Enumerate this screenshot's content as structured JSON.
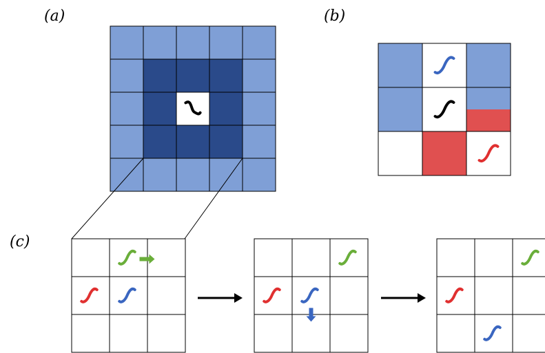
{
  "panel_labels": {
    "a": "(a)",
    "b": "(b)",
    "c": "(c)"
  },
  "colors": {
    "light_blue": "#7f9fd6",
    "dark_blue": "#2a4a8a",
    "red": "#e05050",
    "white": "#ffffff",
    "worm_black": "#000000",
    "worm_blue": "#3a66c0",
    "worm_red": "#e03030",
    "worm_green": "#6aae3a",
    "arrow_black": "#000000"
  },
  "panel_a": {
    "grid_size": 5,
    "cells": [
      [
        "light",
        "light",
        "light",
        "light",
        "light"
      ],
      [
        "light",
        "dark",
        "dark",
        "dark",
        "light"
      ],
      [
        "light",
        "dark",
        "white",
        "dark",
        "light"
      ],
      [
        "light",
        "dark",
        "dark",
        "dark",
        "light"
      ],
      [
        "light",
        "light",
        "light",
        "light",
        "light"
      ]
    ],
    "worm": {
      "row": 2,
      "col": 2,
      "color": "worm_black",
      "icon": "worm-icon"
    }
  },
  "panel_b": {
    "grid_size": 3,
    "cells": [
      [
        "light",
        "white",
        "light"
      ],
      [
        "light",
        "white",
        "light-red-split"
      ],
      [
        "white",
        "red",
        "white"
      ]
    ],
    "worms": [
      {
        "row": 0,
        "col": 1,
        "color": "worm_blue",
        "icon": "worm-icon"
      },
      {
        "row": 1,
        "col": 1,
        "color": "worm_black",
        "icon": "worm-icon"
      },
      {
        "row": 2,
        "col": 2,
        "color": "worm_red",
        "icon": "worm-icon"
      }
    ]
  },
  "panel_c": {
    "steps": [
      {
        "worms": [
          {
            "row": 0,
            "col": 1,
            "color": "worm_green"
          },
          {
            "row": 1,
            "col": 0,
            "color": "worm_red"
          },
          {
            "row": 1,
            "col": 1,
            "color": "worm_blue"
          }
        ],
        "move_arrow": {
          "row": 0,
          "col": 1,
          "direction": "right",
          "color": "worm_green"
        }
      },
      {
        "worms": [
          {
            "row": 0,
            "col": 2,
            "color": "worm_green"
          },
          {
            "row": 1,
            "col": 0,
            "color": "worm_red"
          },
          {
            "row": 1,
            "col": 1,
            "color": "worm_blue"
          }
        ],
        "move_arrow": {
          "row": 1,
          "col": 1,
          "direction": "down",
          "color": "worm_blue"
        }
      },
      {
        "worms": [
          {
            "row": 0,
            "col": 2,
            "color": "worm_green"
          },
          {
            "row": 1,
            "col": 0,
            "color": "worm_red"
          },
          {
            "row": 2,
            "col": 1,
            "color": "worm_blue"
          }
        ]
      }
    ]
  }
}
